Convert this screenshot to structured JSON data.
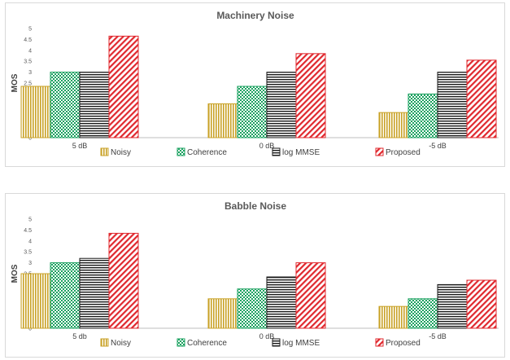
{
  "chart_data": [
    {
      "type": "bar",
      "title": "Machinery Noise",
      "xlabel": "",
      "ylabel": "MOS",
      "ylim": [
        0,
        5
      ],
      "yticks": [
        "0",
        "0.5",
        "1",
        "1.5",
        "2",
        "2.5",
        "3",
        "3.5",
        "4",
        "4.5",
        "5"
      ],
      "categories": [
        "5 dB",
        "0 dB",
        "-5 dB"
      ],
      "series": [
        {
          "name": "Noisy",
          "values": [
            2.35,
            1.55,
            1.15
          ]
        },
        {
          "name": "Coherence",
          "values": [
            3.0,
            2.35,
            2.0
          ]
        },
        {
          "name": "log MMSE",
          "values": [
            3.0,
            3.0,
            3.0
          ]
        },
        {
          "name": "Proposed",
          "values": [
            4.65,
            3.85,
            3.55
          ]
        }
      ],
      "legend": "bottom",
      "grid": false
    },
    {
      "type": "bar",
      "title": "Babble Noise",
      "xlabel": "",
      "ylabel": "MOS",
      "ylim": [
        0,
        5
      ],
      "yticks": [
        "0",
        "0.5",
        "1",
        "1.5",
        "2",
        "2.5",
        "3",
        "3.5",
        "4",
        "4.5",
        "5"
      ],
      "categories": [
        "5 db",
        "0 dB",
        "-5 dB"
      ],
      "series": [
        {
          "name": "Noisy",
          "values": [
            2.5,
            1.35,
            1.0
          ]
        },
        {
          "name": "Coherence",
          "values": [
            3.0,
            1.8,
            1.35
          ]
        },
        {
          "name": "log MMSE",
          "values": [
            3.2,
            2.35,
            2.0
          ]
        },
        {
          "name": "Proposed",
          "values": [
            4.35,
            3.0,
            2.2
          ]
        }
      ],
      "legend": "bottom",
      "grid": false
    }
  ],
  "colors": {
    "Noisy": "#c9a227",
    "Coherence": "#19a15f",
    "log MMSE": "#1a1a1a",
    "Proposed": "#e0282e"
  }
}
